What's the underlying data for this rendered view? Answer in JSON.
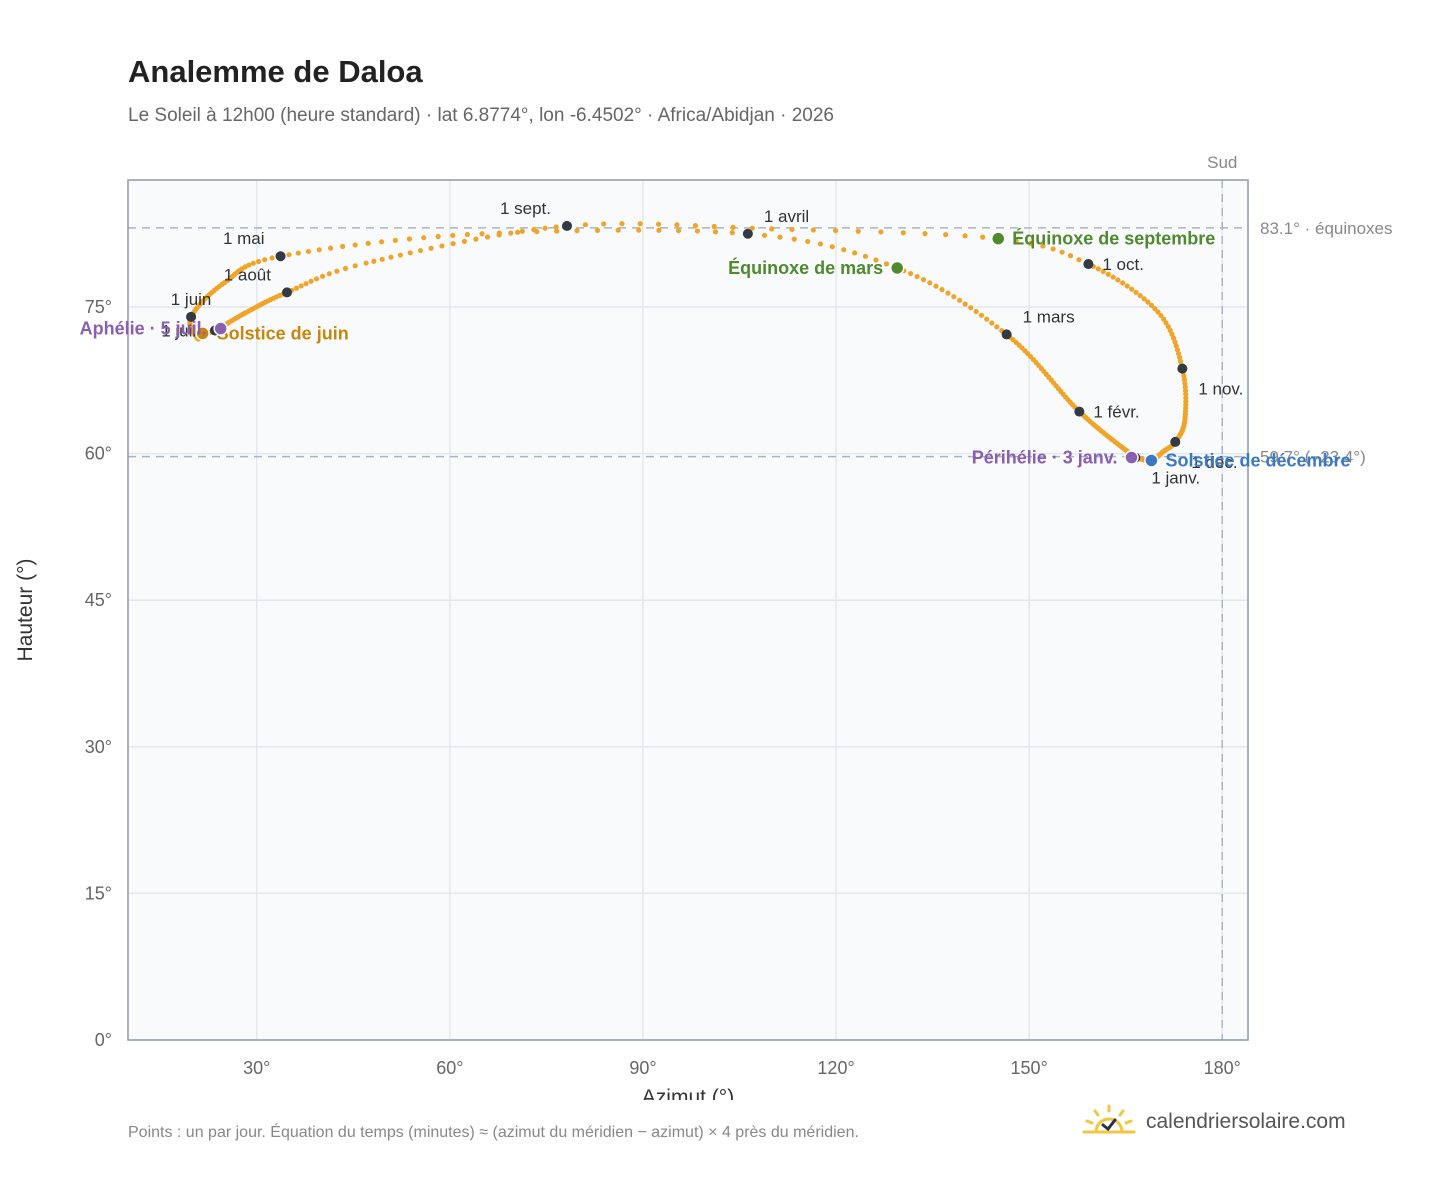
{
  "title": "Analemme de Daloa",
  "subtitle": "Le Soleil à 12h00 (heure standard) · lat 6.8774°, lon -6.4502° · Africa/Abidjan · 2026",
  "footnote": "Points : un par jour. Équation du temps (minutes) ≈ (azimut du méridien − azimut) × 4 près du méridien.",
  "brand": {
    "name": "calendriersolaire.com",
    "icon": "sun-check-icon"
  },
  "colors": {
    "curve": "#f0a52a",
    "month_dot": "#333a44",
    "equinox": "#4f8a2e",
    "june": "#c8860a",
    "december": "#3b79c2",
    "aphelion": "#8a5fb0",
    "grid": "#e3e8ee",
    "plot_bg": "#f8fafc"
  },
  "chart_data": {
    "type": "scatter",
    "xlabel": "Azimut (°)",
    "ylabel": "Hauteur (°)",
    "xlim": [
      10,
      184
    ],
    "ylim": [
      0,
      88
    ],
    "x_ticks": [
      30,
      60,
      90,
      120,
      150,
      180
    ],
    "x_tick_labels": [
      "30°",
      "60°",
      "90°",
      "120°",
      "150°",
      "180°"
    ],
    "y_ticks": [
      0,
      15,
      30,
      45,
      60,
      75
    ],
    "y_tick_labels": [
      "0°",
      "15°",
      "30°",
      "45°",
      "60°",
      "75°"
    ],
    "grid": true,
    "south_line": {
      "x": 180,
      "label": "Sud"
    },
    "ref_lines": [
      {
        "y": 83.1,
        "label": "83.1° · équinoxes"
      },
      {
        "y": 59.7,
        "label": "59.7° (−23.4°)"
      }
    ],
    "series": [
      {
        "keypoints": [
          {
            "d": 1,
            "x": 166.5,
            "y": 59.6
          },
          {
            "d": 32,
            "x": 157.8,
            "y": 64.3
          },
          {
            "d": 60,
            "x": 146.5,
            "y": 72.2
          },
          {
            "d": 79,
            "x": 129.5,
            "y": 79.0
          },
          {
            "d": 91,
            "x": 106.3,
            "y": 82.5
          },
          {
            "d": 105,
            "x": 65.0,
            "y": 82.5
          },
          {
            "d": 121,
            "x": 33.7,
            "y": 80.2
          },
          {
            "d": 135,
            "x": 25.0,
            "y": 77.5
          },
          {
            "d": 152,
            "x": 19.8,
            "y": 74.0
          },
          {
            "d": 167,
            "x": 20.8,
            "y": 71.8
          },
          {
            "d": 172,
            "x": 21.6,
            "y": 72.3
          },
          {
            "d": 182,
            "x": 23.5,
            "y": 72.6
          },
          {
            "d": 198,
            "x": 28.5,
            "y": 74.5
          },
          {
            "d": 213,
            "x": 34.7,
            "y": 76.5
          },
          {
            "d": 225,
            "x": 47.0,
            "y": 79.5
          },
          {
            "d": 244,
            "x": 78.2,
            "y": 83.3
          },
          {
            "d": 255,
            "x": 110.0,
            "y": 83.0
          },
          {
            "d": 266,
            "x": 145.2,
            "y": 82.0
          },
          {
            "d": 274,
            "x": 159.2,
            "y": 79.4
          },
          {
            "d": 290,
            "x": 170.0,
            "y": 74.5
          },
          {
            "d": 305,
            "x": 173.8,
            "y": 68.7
          },
          {
            "d": 320,
            "x": 174.2,
            "y": 63.5
          },
          {
            "d": 335,
            "x": 172.7,
            "y": 61.2
          },
          {
            "d": 345,
            "x": 170.8,
            "y": 60.2
          },
          {
            "d": 355,
            "x": 169.0,
            "y": 59.3
          },
          {
            "d": 366,
            "x": 166.5,
            "y": 59.6
          }
        ]
      }
    ],
    "months": [
      {
        "label": "1 janv.",
        "x": 166.5,
        "y": 59.6,
        "pos": "below-right"
      },
      {
        "label": "1 févr.",
        "x": 157.8,
        "y": 64.3,
        "pos": "right"
      },
      {
        "label": "1 mars",
        "x": 146.5,
        "y": 72.2,
        "pos": "above-right"
      },
      {
        "label": "1 avril",
        "x": 106.3,
        "y": 82.5,
        "pos": "above-right"
      },
      {
        "label": "1 mai",
        "x": 33.7,
        "y": 80.2,
        "pos": "above-left"
      },
      {
        "label": "1 juin",
        "x": 19.8,
        "y": 74.0,
        "pos": "above"
      },
      {
        "label": "1 juil.",
        "x": 23.5,
        "y": 72.6,
        "pos": "left"
      },
      {
        "label": "1 août",
        "x": 34.7,
        "y": 76.5,
        "pos": "above-left"
      },
      {
        "label": "1 sept.",
        "x": 78.2,
        "y": 83.3,
        "pos": "above-left"
      },
      {
        "label": "1 oct.",
        "x": 159.2,
        "y": 79.4,
        "pos": "right"
      },
      {
        "label": "1 nov.",
        "x": 173.8,
        "y": 68.7,
        "pos": "below-right"
      },
      {
        "label": "1 déc.",
        "x": 172.7,
        "y": 61.2,
        "pos": "below-right"
      }
    ],
    "events": [
      {
        "label": "Équinoxe de mars",
        "x": 129.5,
        "y": 79.0,
        "color": "#4f8a2e",
        "pos": "left"
      },
      {
        "label": "Équinoxe de septembre",
        "x": 145.2,
        "y": 82.0,
        "color": "#4f8a2e",
        "pos": "right"
      },
      {
        "label": "Solstice de juin",
        "x": 21.6,
        "y": 72.3,
        "color": "#c8860a",
        "pos": "right"
      },
      {
        "label": "Solstice de décembre",
        "x": 169.0,
        "y": 59.3,
        "color": "#3b79c2",
        "pos": "right"
      },
      {
        "label": "Aphélie · 5 juil.",
        "x": 24.4,
        "y": 72.8,
        "color": "#8a5fb0",
        "pos": "left"
      },
      {
        "label": "Périhélie · 3 janv.",
        "x": 165.9,
        "y": 59.6,
        "color": "#8a5fb0",
        "pos": "left"
      }
    ]
  }
}
